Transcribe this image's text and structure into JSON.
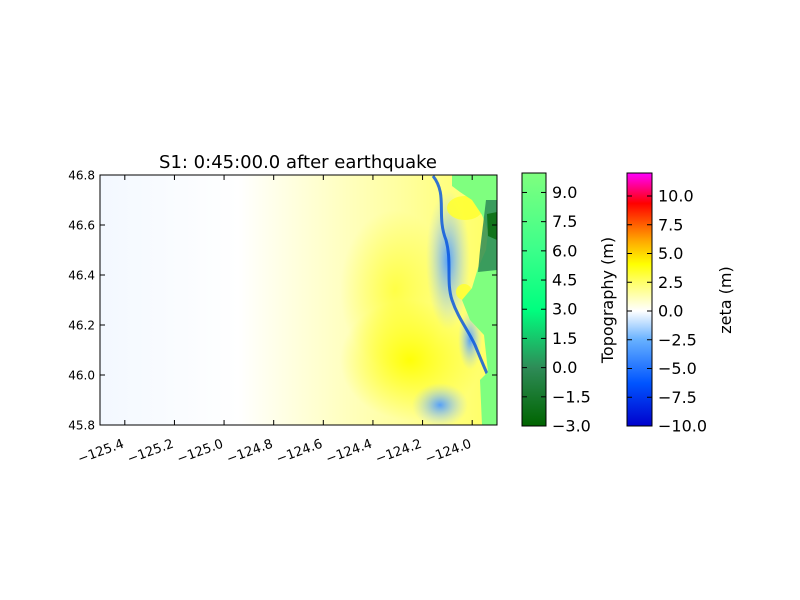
{
  "chart_data": {
    "type": "heatmap",
    "title": "S1: 0:45:00.0 after earthquake",
    "x_ticks": [
      "−125.4",
      "−125.2",
      "−125.0",
      "−124.8",
      "−124.6",
      "−124.4",
      "−124.2",
      "−124.0"
    ],
    "x_tick_values": [
      -125.4,
      -125.2,
      -125.0,
      -124.8,
      -124.6,
      -124.4,
      -124.2,
      -124.0
    ],
    "xlim": [
      -125.5,
      -123.9
    ],
    "y_ticks": [
      "46.8",
      "46.6",
      "46.4",
      "46.2",
      "46.0",
      "45.8"
    ],
    "y_tick_values": [
      46.8,
      46.6,
      46.4,
      46.2,
      46.0,
      45.8
    ],
    "ylim": [
      45.8,
      46.8
    ],
    "colorbars": [
      {
        "label": "Topography (m)",
        "range": [
          -3.0,
          10.0
        ],
        "ticks": [
          "9.0",
          "7.5",
          "6.0",
          "4.5",
          "3.0",
          "1.5",
          "0.0",
          "−1.5",
          "−3.0"
        ],
        "tick_values": [
          9.0,
          7.5,
          6.0,
          4.5,
          3.0,
          1.5,
          0.0,
          -1.5,
          -3.0
        ],
        "colors": [
          "#006400",
          "#2e8b57",
          "#00ff7f",
          "#7fff7f"
        ]
      },
      {
        "label": "zeta (m)",
        "range": [
          -10.0,
          12.0
        ],
        "ticks": [
          "10.0",
          "7.5",
          "5.0",
          "2.5",
          "0.0",
          "−2.5",
          "−5.0",
          "−7.5",
          "−10.0"
        ],
        "tick_values": [
          10.0,
          7.5,
          5.0,
          2.5,
          0.0,
          -2.5,
          -5.0,
          -7.5,
          -10.0
        ],
        "colors": [
          "#0000cc",
          "#3399ff",
          "#ffffff",
          "#ffff00",
          "#ff8000",
          "#ff0000",
          "#ff00ff"
        ]
      }
    ]
  }
}
